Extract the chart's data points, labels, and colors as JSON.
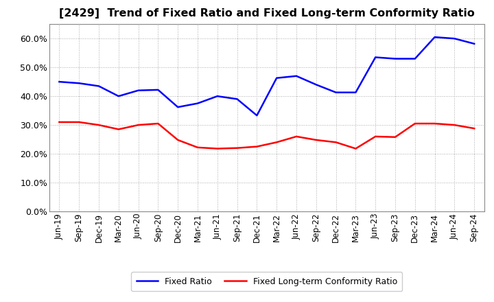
{
  "title": "[2429]  Trend of Fixed Ratio and Fixed Long-term Conformity Ratio",
  "x_labels": [
    "Jun-19",
    "Sep-19",
    "Dec-19",
    "Mar-20",
    "Jun-20",
    "Sep-20",
    "Dec-20",
    "Mar-21",
    "Jun-21",
    "Sep-21",
    "Dec-21",
    "Mar-22",
    "Jun-22",
    "Sep-22",
    "Dec-22",
    "Mar-23",
    "Jun-23",
    "Sep-23",
    "Dec-23",
    "Mar-24",
    "Jun-24",
    "Sep-24"
  ],
  "fixed_ratio": [
    0.45,
    0.445,
    0.435,
    0.4,
    0.42,
    0.422,
    0.362,
    0.375,
    0.4,
    0.39,
    0.333,
    0.463,
    0.47,
    0.44,
    0.413,
    0.413,
    0.535,
    0.53,
    0.53,
    0.605,
    0.6,
    0.582
  ],
  "fixed_lt_ratio": [
    0.31,
    0.31,
    0.3,
    0.285,
    0.3,
    0.305,
    0.248,
    0.222,
    0.218,
    0.22,
    0.225,
    0.24,
    0.26,
    0.248,
    0.24,
    0.218,
    0.26,
    0.258,
    0.305,
    0.305,
    0.3,
    0.288
  ],
  "fixed_ratio_color": "#0000FF",
  "fixed_lt_ratio_color": "#FF0000",
  "bg_color": "#FFFFFF",
  "plot_bg_color": "#FFFFFF",
  "grid_color": "#AAAAAA",
  "ylim": [
    0.0,
    0.65
  ],
  "yticks": [
    0.0,
    0.1,
    0.2,
    0.3,
    0.4,
    0.5,
    0.6
  ],
  "legend_fixed_ratio": "Fixed Ratio",
  "legend_fixed_lt_ratio": "Fixed Long-term Conformity Ratio",
  "title_fontsize": 11.5,
  "tick_fontsize": 8.5,
  "ytick_fontsize": 9.0,
  "legend_fontsize": 9.0
}
